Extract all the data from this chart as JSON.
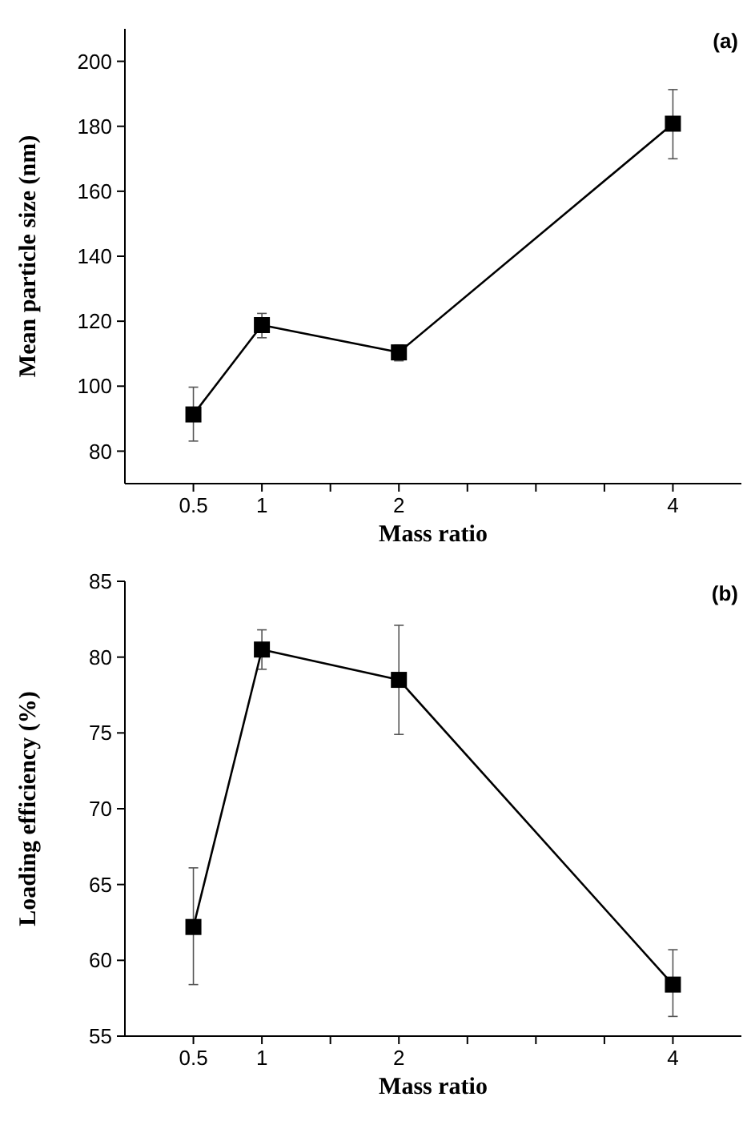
{
  "chart_data": [
    {
      "type": "line",
      "annotations": [
        "(a)"
      ],
      "xlabel": "Mass ratio",
      "ylabel": "Mean particle size (nm)",
      "x": [
        0.5,
        1,
        2,
        4
      ],
      "series": [
        {
          "color": "#000000",
          "values": [
            91.3,
            118.8,
            110.4,
            180.8
          ],
          "errors": [
            [
              83.1,
              99.7
            ],
            [
              114.9,
              122.4
            ],
            [
              107.8,
              112.7
            ],
            [
              170,
              191.3
            ]
          ]
        }
      ],
      "xlim": [
        0,
        4.5
      ],
      "xticks": [
        0.5,
        1,
        {
          "value": 1.5,
          "label": null
        },
        2,
        {
          "value": 2.5,
          "label": null
        },
        {
          "value": 3,
          "label": null
        },
        {
          "value": 3.5,
          "label": null
        },
        4
      ],
      "ylim": [
        70,
        210
      ],
      "yticks": [
        80,
        100,
        120,
        140,
        160,
        180,
        200
      ],
      "marker": "square",
      "grid": false
    },
    {
      "type": "line",
      "annotations": [
        "(b)"
      ],
      "xlabel": "Mass ratio",
      "ylabel": "Loading efficiency (%)",
      "x": [
        0.5,
        1,
        2,
        4
      ],
      "series": [
        {
          "color": "#000000",
          "values": [
            62.2,
            80.5,
            78.5,
            58.4
          ],
          "errors": [
            [
              58.4,
              66.1
            ],
            [
              79.2,
              81.8
            ],
            [
              74.9,
              82.1
            ],
            [
              56.3,
              60.7
            ]
          ]
        }
      ],
      "xlim": [
        0,
        4.5
      ],
      "xticks": [
        0.5,
        1,
        {
          "value": 1.5,
          "label": null
        },
        2,
        {
          "value": 2.5,
          "label": null
        },
        {
          "value": 3,
          "label": null
        },
        {
          "value": 3.5,
          "label": null
        },
        4
      ],
      "ylim": [
        55,
        85
      ],
      "yticks": [
        55,
        60,
        65,
        70,
        75,
        80,
        85
      ],
      "marker": "square",
      "grid": false
    }
  ]
}
